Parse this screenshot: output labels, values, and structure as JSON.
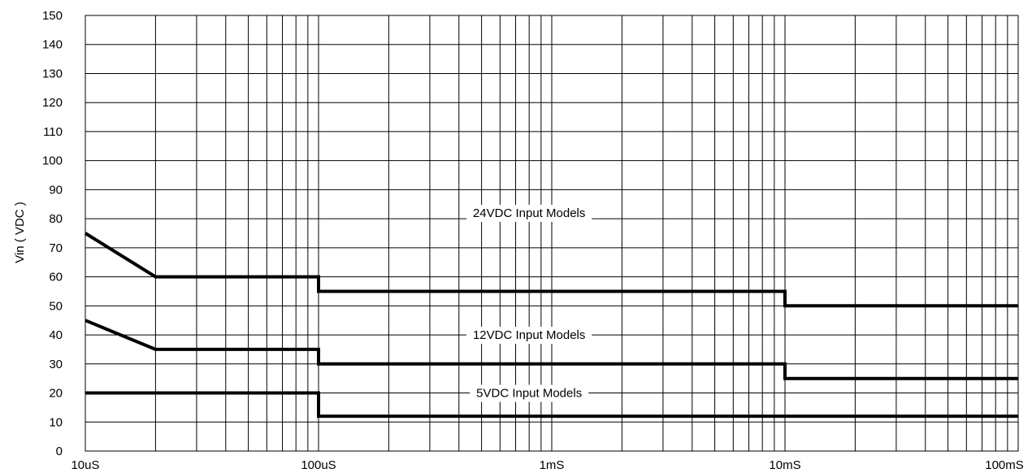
{
  "chart_data": {
    "type": "line",
    "title": "",
    "xlabel": "",
    "ylabel": "Vin ( VDC )",
    "x_scale": "log",
    "xlim": [
      "10uS",
      "100mS"
    ],
    "xlim_seconds": [
      1e-05,
      0.1
    ],
    "ylim": [
      0,
      150
    ],
    "y_ticks": [
      0,
      10,
      20,
      30,
      40,
      50,
      60,
      70,
      80,
      90,
      100,
      110,
      120,
      130,
      140,
      150
    ],
    "x_ticks": [
      {
        "label": "10uS",
        "value": 1e-05
      },
      {
        "label": "100uS",
        "value": 0.0001
      },
      {
        "label": "1mS",
        "value": 0.001
      },
      {
        "label": "10mS",
        "value": 0.01
      },
      {
        "label": "100mS",
        "value": 0.1
      }
    ],
    "grid": true,
    "series": [
      {
        "name": "24VDC Input Models",
        "label_at": [
          0.0008,
          82
        ],
        "points": [
          [
            1e-05,
            75
          ],
          [
            2e-05,
            60
          ],
          [
            0.0001,
            60
          ],
          [
            0.0001,
            55
          ],
          [
            0.01,
            55
          ],
          [
            0.01,
            50
          ],
          [
            0.1,
            50
          ]
        ]
      },
      {
        "name": "12VDC Input Models",
        "label_at": [
          0.0008,
          40
        ],
        "points": [
          [
            1e-05,
            45
          ],
          [
            2e-05,
            35
          ],
          [
            0.0001,
            35
          ],
          [
            0.0001,
            30
          ],
          [
            0.01,
            30
          ],
          [
            0.01,
            25
          ],
          [
            0.1,
            25
          ]
        ]
      },
      {
        "name": "5VDC Input Models",
        "label_at": [
          0.0008,
          20
        ],
        "points": [
          [
            1e-05,
            20
          ],
          [
            0.0001,
            20
          ],
          [
            0.0001,
            12
          ],
          [
            0.1,
            12
          ]
        ]
      }
    ],
    "colors": {
      "line": "#000000",
      "grid": "#000000",
      "background": "#ffffff"
    }
  }
}
